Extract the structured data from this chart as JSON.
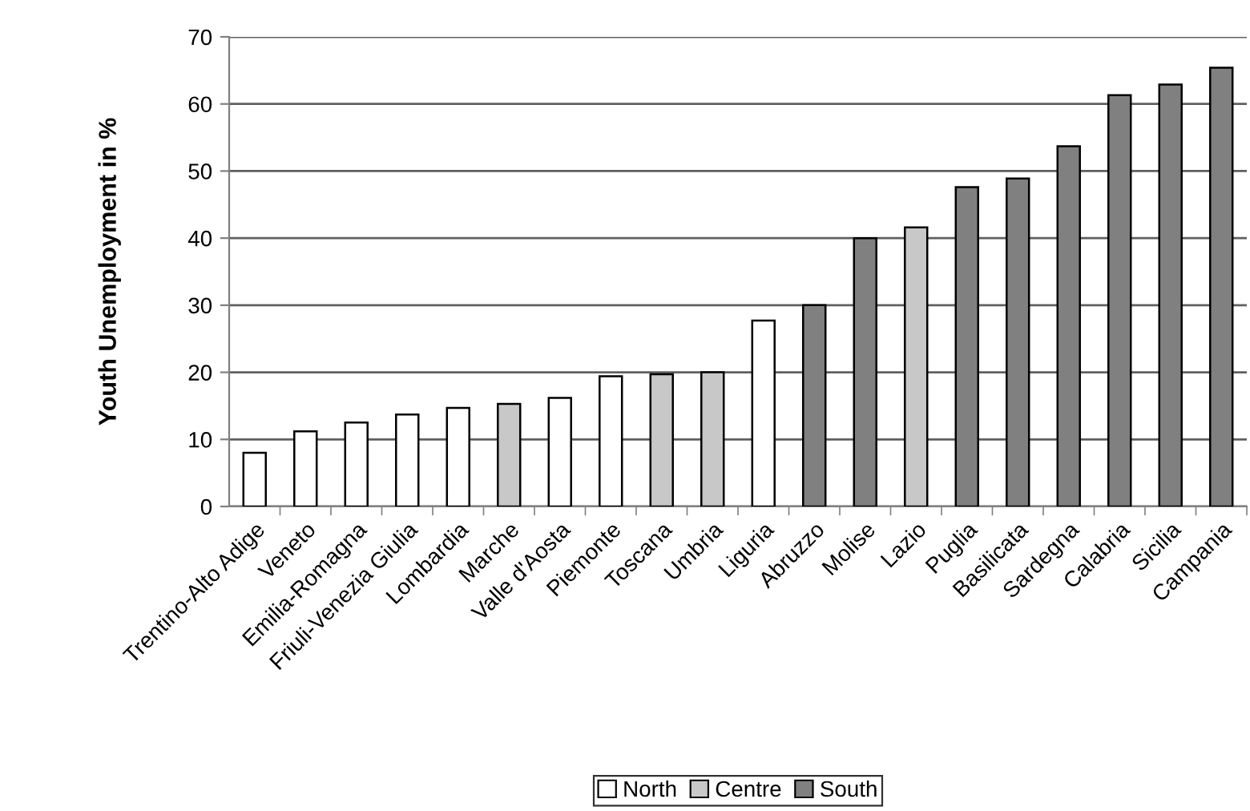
{
  "chart_data": {
    "type": "bar",
    "ylabel": "Youth Unemployment in %",
    "categories": [
      "Trentino-Alto Adige",
      "Veneto",
      "Emilia-Romagna",
      "Friuli-Venezia Giulia",
      "Lombardia",
      "Marche",
      "Valle d'Aosta",
      "Piemonte",
      "Toscana",
      "Umbria",
      "Liguria",
      "Abruzzo",
      "Molise",
      "Lazio",
      "Puglia",
      "Basilicata",
      "Sardegna",
      "Calabria",
      "Sicilia",
      "Campania"
    ],
    "series": [
      {
        "name": "North",
        "color": "#ffffff",
        "values": [
          8,
          11.2,
          12.5,
          13.7,
          14.7,
          null,
          16.2,
          19.4,
          null,
          null,
          27.7,
          null,
          null,
          null,
          null,
          null,
          null,
          null,
          null,
          null
        ]
      },
      {
        "name": "Centre",
        "color": "#c8c8c8",
        "values": [
          null,
          null,
          null,
          null,
          null,
          15.3,
          null,
          null,
          19.7,
          20,
          null,
          null,
          null,
          41.6,
          null,
          null,
          null,
          null,
          null,
          null
        ]
      },
      {
        "name": "South",
        "color": "#808080",
        "values": [
          null,
          null,
          null,
          null,
          null,
          null,
          null,
          null,
          null,
          null,
          null,
          30,
          40,
          null,
          47.6,
          48.9,
          53.7,
          61.3,
          62.9,
          65.4
        ]
      }
    ],
    "ylim": [
      0,
      70
    ],
    "yticks": [
      0,
      10,
      20,
      30,
      40,
      50,
      60,
      70
    ],
    "grid": "y",
    "legend": "bottom"
  }
}
